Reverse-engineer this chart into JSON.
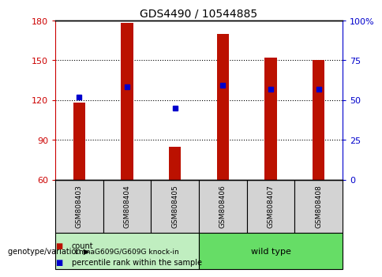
{
  "title": "GDS4490 / 10544885",
  "samples": [
    "GSM808403",
    "GSM808404",
    "GSM808405",
    "GSM808406",
    "GSM808407",
    "GSM808408"
  ],
  "red_counts": [
    118,
    178,
    85,
    170,
    152,
    150
  ],
  "blue_percentiles_left": [
    122,
    130,
    114,
    131,
    128,
    128
  ],
  "ylim_left": [
    60,
    180
  ],
  "ylim_right": [
    0,
    100
  ],
  "yticks_left": [
    60,
    90,
    120,
    150,
    180
  ],
  "yticks_right": [
    0,
    25,
    50,
    75,
    100
  ],
  "ytick_labels_left": [
    "60",
    "90",
    "120",
    "150",
    "180"
  ],
  "ytick_labels_right": [
    "0",
    "25",
    "50",
    "75",
    "100%"
  ],
  "left_axis_color": "#cc0000",
  "right_axis_color": "#0000cc",
  "bar_color": "#bb1100",
  "dot_color": "#0000cc",
  "grid_color": "#000000",
  "group1_label": "LmnaG609G/G609G knock-in",
  "group2_label": "wild type",
  "group1_indices": [
    0,
    1,
    2
  ],
  "group2_indices": [
    3,
    4,
    5
  ],
  "group1_color": "#c0eec0",
  "group2_color": "#66dd66",
  "legend_count": "count",
  "legend_percentile": "percentile rank within the sample",
  "genotype_label": "genotype/variation",
  "bar_width": 0.25
}
